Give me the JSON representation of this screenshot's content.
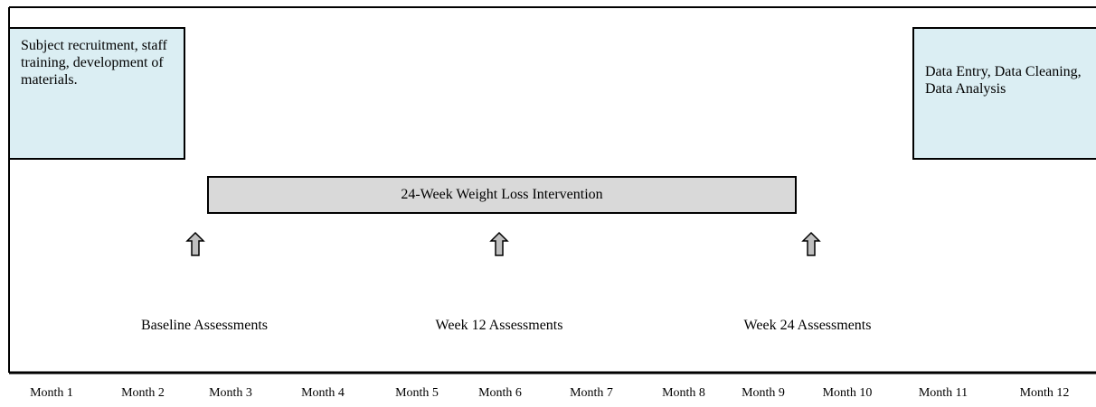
{
  "phases": {
    "preparation": "Subject recruitment, staff training, development of materials.",
    "analysis": "Data Entry, Data Cleaning, Data Analysis"
  },
  "intervention": "24-Week Weight Loss Intervention",
  "assessments": [
    "Baseline Assessments",
    "Week 12 Assessments",
    "Week 24 Assessments"
  ],
  "months": [
    "Month 1",
    "Month 2",
    "Month 3",
    "Month 4",
    "Month 5",
    "Month 6",
    "Month 7",
    "Month 8",
    "Month 9",
    "Month 10",
    "Month 11",
    "Month 12"
  ]
}
